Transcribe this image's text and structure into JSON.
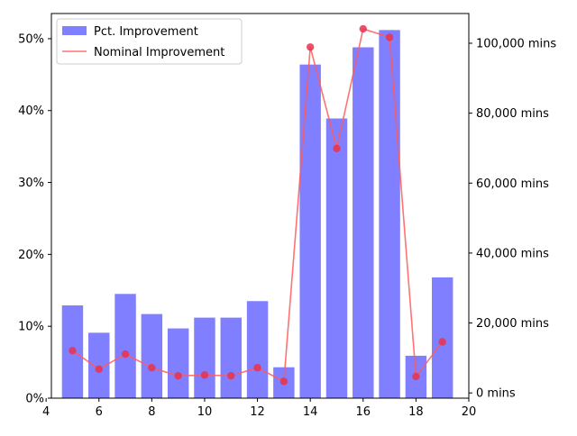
{
  "chart_data": {
    "type": "bar",
    "x": [
      5,
      6,
      7,
      8,
      9,
      10,
      11,
      12,
      13,
      14,
      15,
      16,
      17,
      18,
      19
    ],
    "xlim": [
      4.2,
      20.0
    ],
    "xticks": [
      4,
      6,
      8,
      10,
      12,
      14,
      16,
      18,
      20
    ],
    "bar_width": 0.8,
    "series": [
      {
        "name": "Pct. Improvement",
        "kind": "bar",
        "axis": "left",
        "color": "#7f7fff",
        "values": [
          12.9,
          9.1,
          14.5,
          11.7,
          9.7,
          11.2,
          11.2,
          13.5,
          4.3,
          46.4,
          38.9,
          48.8,
          51.2,
          5.9,
          16.8
        ]
      },
      {
        "name": "Nominal Improvement",
        "kind": "line",
        "axis": "right",
        "color": "#ff5a5a",
        "marker_color": "#e8334d",
        "values": [
          12100,
          6800,
          11100,
          7200,
          4900,
          5100,
          4900,
          7200,
          3300,
          98900,
          69900,
          104100,
          101700,
          4700,
          14600
        ]
      }
    ],
    "y_left": {
      "ylim": [
        0,
        53.5
      ],
      "ticks": [
        0,
        10,
        20,
        30,
        40,
        50
      ],
      "tick_labels": [
        "0%",
        "10%",
        "20%",
        "30%",
        "40%",
        "50%"
      ]
    },
    "y_right": {
      "ylim": [
        -1500,
        108500
      ],
      "ticks": [
        0,
        20000,
        40000,
        60000,
        80000,
        100000
      ],
      "tick_labels": [
        "0 mins",
        "20,000 mins",
        "40,000 mins",
        "60,000 mins",
        "80,000 mins",
        "100,000 mins"
      ]
    },
    "legend": {
      "placement": "top-left",
      "entries": [
        "Pct. Improvement",
        "Nominal Improvement"
      ]
    },
    "grid": false
  }
}
